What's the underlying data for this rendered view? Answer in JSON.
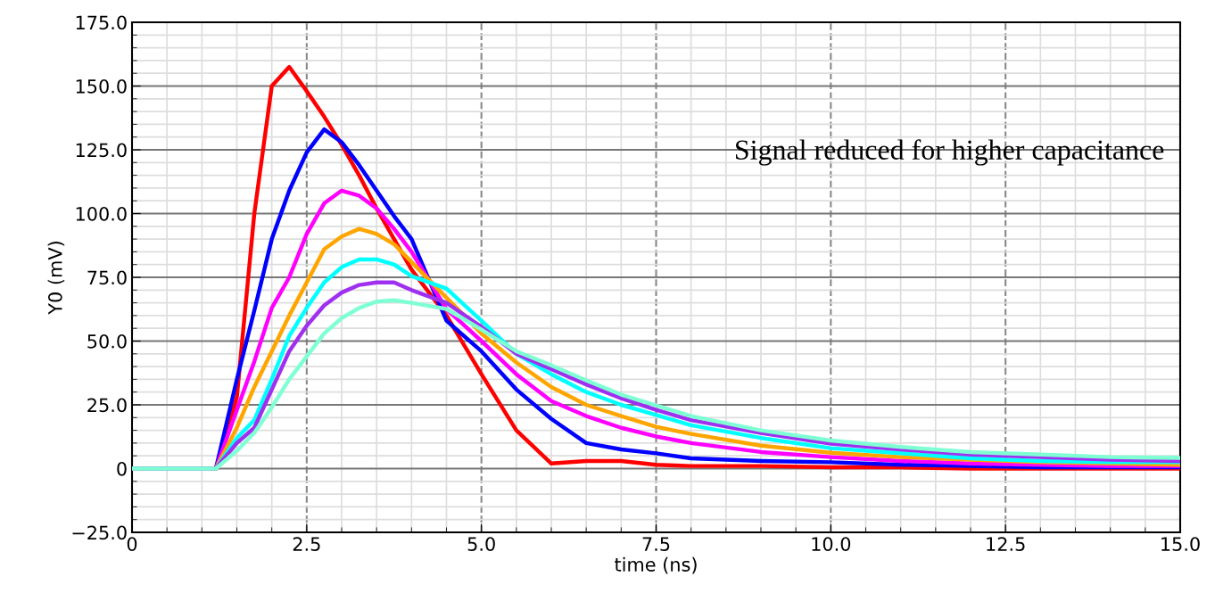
{
  "chart_data": {
    "type": "line",
    "xlabel": "time (ns)",
    "ylabel": "Y0 (mV)",
    "x": [
      0,
      1.2,
      1.5,
      1.75,
      2.0,
      2.25,
      2.5,
      2.75,
      3.0,
      3.25,
      3.5,
      3.75,
      4.0,
      4.5,
      5.0,
      5.5,
      6.0,
      6.5,
      7.0,
      7.5,
      8.0,
      9.0,
      10.0,
      11.0,
      12.0,
      13.0,
      14.0,
      15.0
    ],
    "series": [
      {
        "color": "#ff0000",
        "values": [
          0,
          0,
          28,
          100,
          150,
          157.5,
          148,
          138,
          127,
          115,
          102,
          90,
          78,
          60,
          37,
          15,
          2,
          3,
          3,
          1.5,
          1,
          1,
          0.5,
          0.5,
          0,
          0,
          0,
          0
        ]
      },
      {
        "color": "#0000ff",
        "values": [
          0,
          0,
          35,
          62,
          90,
          109,
          124,
          133,
          128,
          119,
          109,
          99,
          90,
          58,
          46,
          31,
          19.5,
          10,
          7.5,
          6,
          4,
          3,
          2.5,
          1.5,
          1,
          0.5,
          0.5,
          0.5
        ]
      },
      {
        "color": "#ff00ff",
        "values": [
          0,
          0,
          23,
          42,
          63,
          75,
          92,
          104,
          109,
          107,
          102,
          94,
          85,
          62.5,
          50,
          37,
          26.5,
          20.6,
          16,
          12.6,
          10,
          6.5,
          4.5,
          3,
          2,
          1.5,
          1,
          1
        ]
      },
      {
        "color": "#ffa500",
        "values": [
          0,
          0,
          16,
          32,
          46,
          60,
          73,
          86,
          91,
          94,
          92,
          88,
          81,
          67,
          53,
          41.6,
          32,
          25,
          20.6,
          16.4,
          13.6,
          9,
          6.2,
          4.5,
          3.5,
          2.5,
          2,
          1.5
        ]
      },
      {
        "color": "#00ffff",
        "values": [
          0,
          0,
          12,
          19,
          35,
          52,
          63,
          73,
          79,
          82,
          82,
          80,
          75.5,
          70.6,
          58,
          45,
          37,
          30,
          25,
          21,
          17,
          12,
          8,
          6,
          4,
          3,
          2.5,
          2.5
        ]
      },
      {
        "color": "#a030f0",
        "values": [
          0,
          0,
          10,
          16,
          31,
          46,
          56,
          64,
          69,
          72,
          73,
          73,
          70,
          65,
          55.6,
          45,
          39,
          33,
          27.6,
          23,
          19,
          14,
          9.8,
          7.5,
          5.5,
          4.5,
          3.5,
          3
        ]
      },
      {
        "color": "#7fffd4",
        "values": [
          0,
          0,
          7,
          14,
          24,
          35,
          44,
          53,
          59,
          63,
          65.5,
          66,
          65,
          62.6,
          54.5,
          46,
          40.5,
          34.6,
          29,
          24.8,
          20.6,
          15,
          11,
          8.5,
          6.5,
          5.5,
          4.5,
          4.2
        ]
      }
    ],
    "xlim": [
      0,
      15
    ],
    "ylim": [
      -25,
      175
    ],
    "xticks": [
      0,
      {
        "value": 2.5,
        "label": "2.5"
      },
      {
        "value": 5,
        "label": "5.0"
      },
      {
        "value": 7.5,
        "label": "7.5"
      },
      {
        "value": 10,
        "label": "10.0"
      },
      {
        "value": 12.5,
        "label": "12.5"
      },
      {
        "value": 15,
        "label": "15.0"
      }
    ],
    "yticks": [
      {
        "value": -25,
        "label": "−25.0"
      },
      {
        "value": 0,
        "label": "0"
      },
      {
        "value": 25,
        "label": "25.0"
      },
      {
        "value": 50,
        "label": "50.0"
      },
      {
        "value": 75,
        "label": "75.0"
      },
      {
        "value": 100,
        "label": "100.0"
      },
      {
        "value": 125,
        "label": "125.0"
      },
      {
        "value": 150,
        "label": "150.0"
      },
      {
        "value": 175,
        "label": "175.0"
      }
    ],
    "grid": true,
    "line_style": "solid",
    "marker": "none",
    "annotations": [
      "Signal reduced for higher capacitance"
    ]
  }
}
